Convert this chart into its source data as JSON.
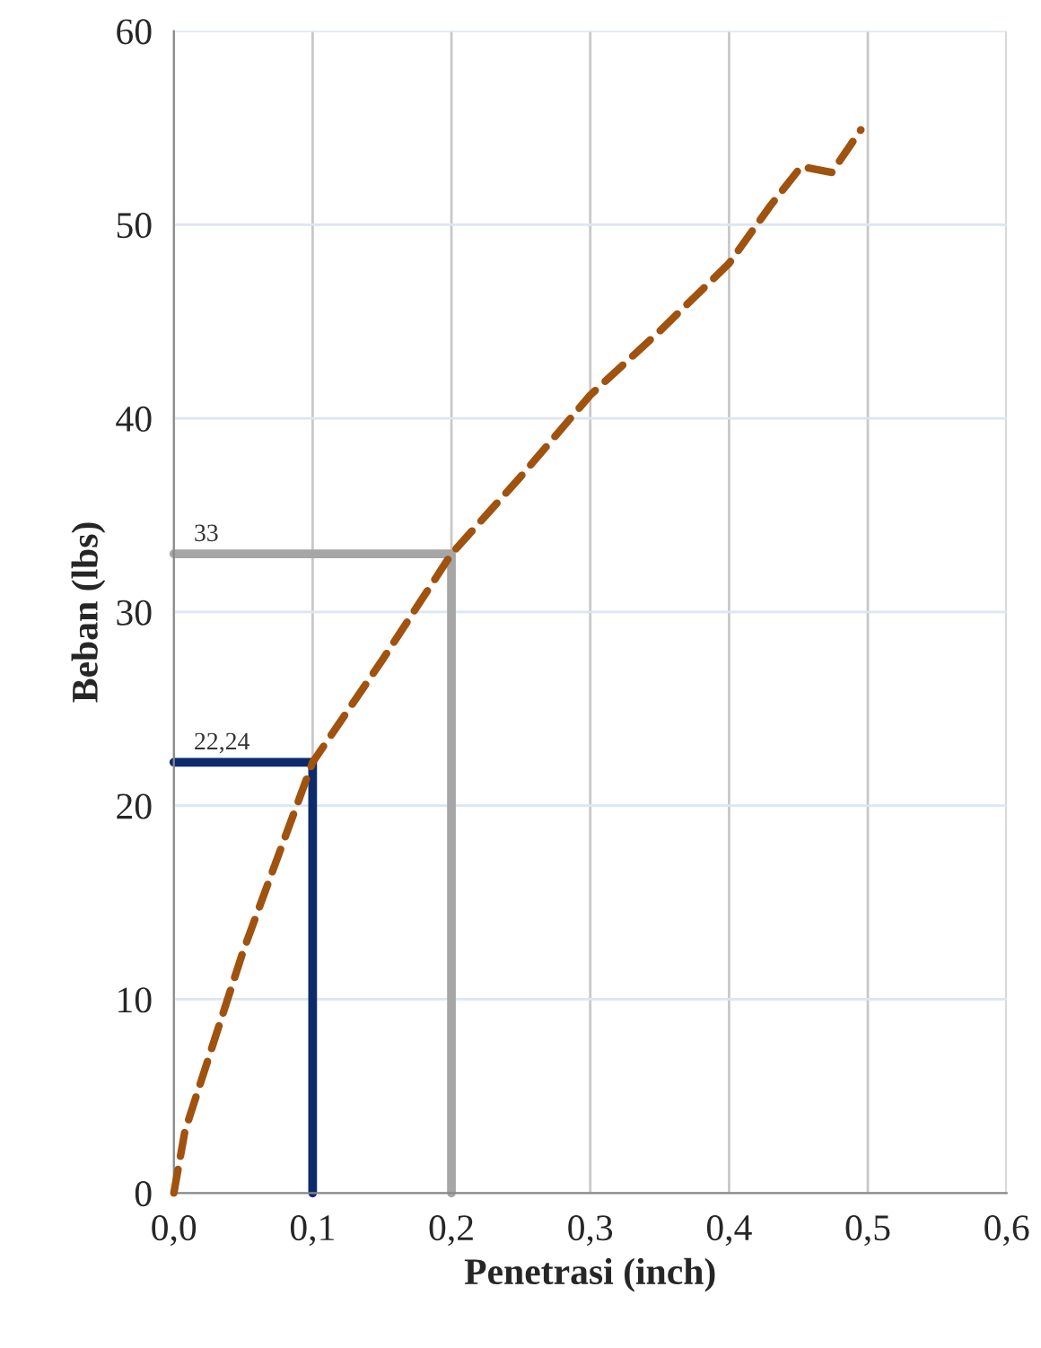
{
  "chart_data": {
    "type": "line",
    "xlabel": "Penetrasi (inch)",
    "ylabel": "Beban (lbs)",
    "series": [
      {
        "color": "#a0520f",
        "line_style": "dashed",
        "x": [
          0,
          0.008,
          0.05,
          0.1,
          0.15,
          0.2,
          0.25,
          0.3,
          0.35,
          0.4,
          0.43,
          0.452,
          0.474,
          0.495
        ],
        "values": [
          0,
          3.2,
          12.5,
          22.24,
          27.5,
          33,
          37,
          41.2,
          44.5,
          48,
          51,
          53,
          52.7,
          54.9
        ]
      },
      {
        "color": "#0d2a6b",
        "line_style": "solid",
        "x": [
          0,
          0.1,
          0.1
        ],
        "values": [
          22.24,
          22.24,
          0
        ]
      },
      {
        "color": "#a6a6a6",
        "line_style": "solid",
        "x": [
          0,
          0.2,
          0.2
        ],
        "values": [
          33,
          33,
          0
        ]
      }
    ],
    "annotations": [
      {
        "text": "22,24",
        "x": 0,
        "y": 22.24
      },
      {
        "text": "33",
        "x": 0,
        "y": 33
      }
    ],
    "xlim": [
      0,
      0.6
    ],
    "ylim": [
      0,
      60
    ],
    "xticks": [
      {
        "value": 0,
        "label": "0,0"
      },
      {
        "value": 0.1,
        "label": "0,1"
      },
      {
        "value": 0.2,
        "label": "0,2"
      },
      {
        "value": 0.3,
        "label": "0,3"
      },
      {
        "value": 0.4,
        "label": "0,4"
      },
      {
        "value": 0.5,
        "label": "0,5"
      },
      {
        "value": 0.6,
        "label": "0,6"
      }
    ],
    "yticks": [
      0,
      10,
      20,
      30,
      40,
      50,
      60
    ],
    "grid": true,
    "legend": false,
    "marker": "none"
  }
}
